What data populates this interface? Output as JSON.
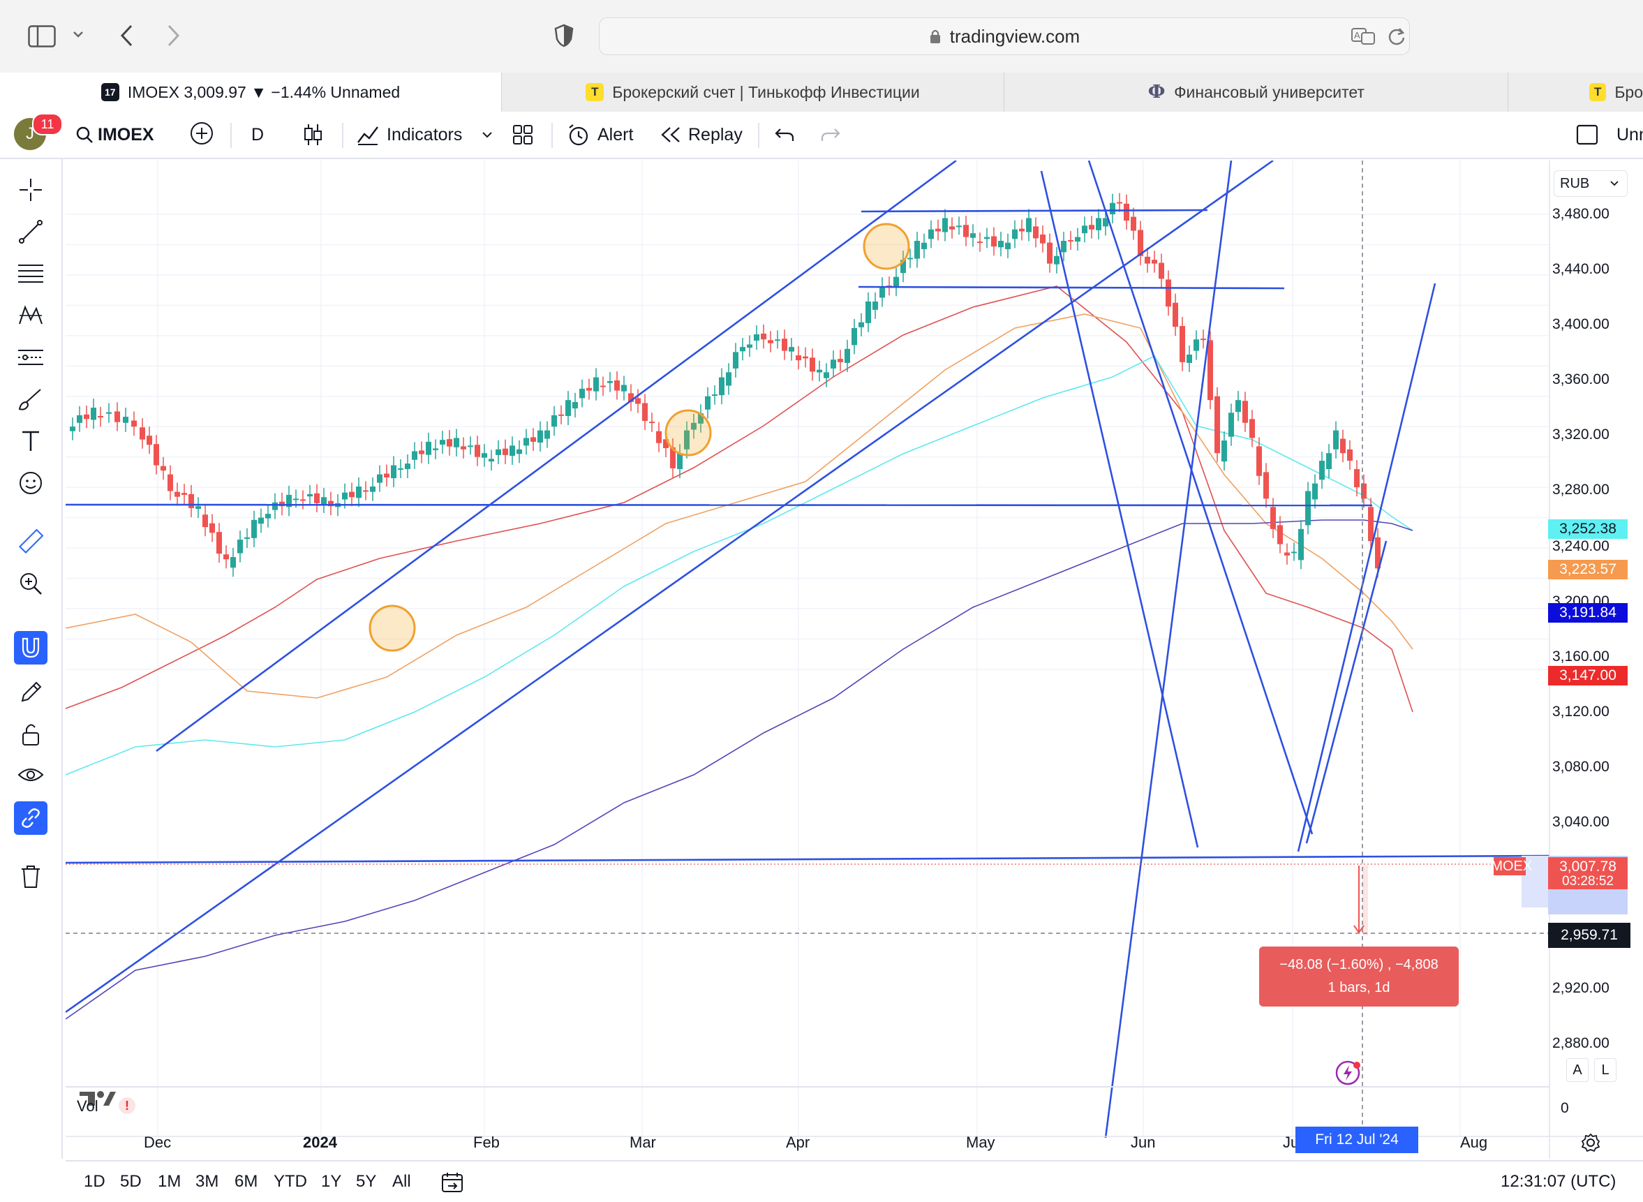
{
  "browser": {
    "url": "tradingview.com",
    "tabs": [
      {
        "label": "IMOEX 3,009.97 ▼ −1.44% Unnamed",
        "favicon": "17",
        "active": true
      },
      {
        "label": "Брокерский счет | Тинькофф Инвестиции",
        "favicon": "T",
        "active": false
      },
      {
        "label": "Финансовый университет",
        "favicon": "Ф",
        "active": false
      },
      {
        "label": "Бро",
        "favicon": "T",
        "active": false
      }
    ]
  },
  "toolbar": {
    "avatar_letter": "J",
    "notifications": "11",
    "symbol": "IMOEX",
    "interval": "D",
    "indicators": "Indicators",
    "alert": "Alert",
    "replay": "Replay",
    "layout_name": "Unn"
  },
  "price_axis": {
    "currency": "RUB",
    "ticks": [
      "3,480.00",
      "3,440.00",
      "3,400.00",
      "3,360.00",
      "3,320.00",
      "3,280.00",
      "3,240.00",
      "3,200.00",
      "3,160.00",
      "3,120.00",
      "3,080.00",
      "3,040.00",
      "2,920.00",
      "2,880.00"
    ],
    "volume_zero": "0"
  },
  "price_tags": {
    "ma_cyan": "3,252.38",
    "ma_orange": "3,223.57",
    "ma_purple": "3,191.84",
    "ma_red": "3,147.00",
    "symbol_label": "IMOEX",
    "last_price": "3,007.78",
    "countdown": "03:28:52",
    "cursor_price": "2,959.71"
  },
  "measure": {
    "line1": "−48.08 (−1.60%) , −4,808",
    "line2": "1 bars, 1d"
  },
  "time_axis": {
    "labels": [
      "Dec",
      "2024",
      "Feb",
      "Mar",
      "Apr",
      "May",
      "Jun",
      "Ju",
      "Aug"
    ],
    "cursor_date": "Fri 12 Jul '24"
  },
  "volume_label": "Vol",
  "scale_buttons": {
    "auto": "A",
    "log": "L"
  },
  "timeframes": [
    "1D",
    "5D",
    "1M",
    "3M",
    "6M",
    "YTD",
    "1Y",
    "5Y",
    "All"
  ],
  "clock": "12:31:07 (UTC)",
  "colors": {
    "up": "#26a69a",
    "down": "#ef5350",
    "trendline": "#2e50e0",
    "ma_cyan": "#5ee8ee",
    "ma_orange": "#f0a060",
    "ma_purple": "#5044b8",
    "ma_red": "#e05050",
    "accent": "#2962ff"
  },
  "chart_data": {
    "type": "candlestick",
    "symbol": "IMOEX",
    "interval": "1D",
    "ylim": [
      2850,
      3510
    ],
    "x_ticks": [
      "Dec",
      "2024",
      "Feb",
      "Mar",
      "Apr",
      "May",
      "Jun",
      "Ju",
      "Aug"
    ],
    "last_close": 3007.78,
    "moving_averages_last": {
      "cyan": 3252.38,
      "orange": 3223.57,
      "purple": 3191.84,
      "red": 3147.0
    },
    "horizontal_levels": [
      3275,
      3010,
      3480,
      3428
    ],
    "measured_move": {
      "from": 3007.78,
      "to": 2959.71,
      "change": -48.08,
      "percent": -1.6
    }
  }
}
